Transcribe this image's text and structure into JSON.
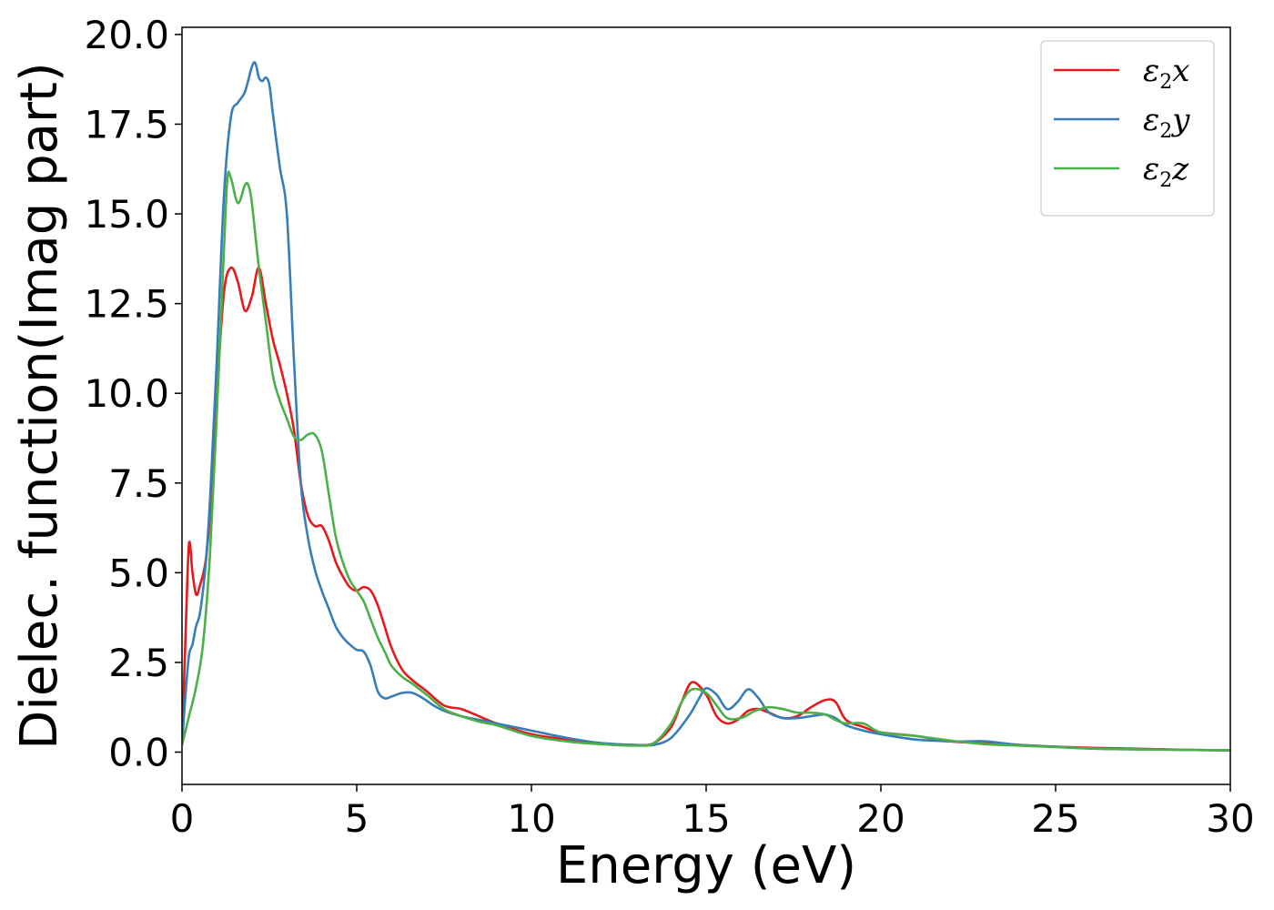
{
  "chart_data": {
    "type": "line",
    "xlabel": "Energy (eV)",
    "ylabel": "Dielec. function(Imag part)",
    "xlim": [
      0,
      30
    ],
    "ylim": [
      -0.9,
      20.2
    ],
    "xticks": [
      "0",
      "5",
      "10",
      "15",
      "20",
      "25",
      "30"
    ],
    "yticks": [
      "0.0",
      "2.5",
      "5.0",
      "7.5",
      "10.0",
      "12.5",
      "15.0",
      "17.5",
      "20.0"
    ],
    "legend_position": "top-right",
    "grid": false,
    "series": [
      {
        "name": "ε2x",
        "symbol": "ε",
        "sub": "2",
        "axis": "x",
        "color": "#e41a1c",
        "x": [
          0,
          0.1,
          0.2,
          0.3,
          0.4,
          0.5,
          0.7,
          0.9,
          1.0,
          1.2,
          1.4,
          1.6,
          1.8,
          2.0,
          2.2,
          2.4,
          2.6,
          2.8,
          3.0,
          3.2,
          3.4,
          3.6,
          3.8,
          4.0,
          4.2,
          4.4,
          4.6,
          4.8,
          5.0,
          5.2,
          5.4,
          5.6,
          5.8,
          6.0,
          6.3,
          6.6,
          7.0,
          7.5,
          8.0,
          8.5,
          9.0,
          10,
          11,
          12,
          13,
          13.5,
          14.0,
          14.3,
          14.6,
          15.0,
          15.3,
          15.6,
          15.9,
          16.2,
          16.5,
          16.8,
          17.2,
          17.6,
          18.0,
          18.4,
          18.7,
          19.0,
          19.5,
          20,
          21,
          22,
          23,
          24,
          25,
          26,
          27,
          28,
          29,
          30
        ],
        "values": [
          0.2,
          3.2,
          5.8,
          5.0,
          4.4,
          4.6,
          5.5,
          8.0,
          10.0,
          12.8,
          13.5,
          13.1,
          12.3,
          12.7,
          13.5,
          12.5,
          11.5,
          10.8,
          10.0,
          9.0,
          7.5,
          6.6,
          6.3,
          6.3,
          5.9,
          5.3,
          4.9,
          4.6,
          4.5,
          4.6,
          4.5,
          4.1,
          3.5,
          2.9,
          2.3,
          2.0,
          1.7,
          1.3,
          1.2,
          1.0,
          0.8,
          0.5,
          0.35,
          0.25,
          0.2,
          0.25,
          0.7,
          1.4,
          1.95,
          1.6,
          1.0,
          0.8,
          0.9,
          1.15,
          1.2,
          1.1,
          0.95,
          1.0,
          1.25,
          1.45,
          1.4,
          0.9,
          0.7,
          0.55,
          0.45,
          0.3,
          0.25,
          0.2,
          0.15,
          0.12,
          0.1,
          0.08,
          0.06,
          0.05
        ]
      },
      {
        "name": "ε2y",
        "symbol": "ε",
        "sub": "2",
        "axis": "y",
        "color": "#377eb8",
        "x": [
          0,
          0.1,
          0.2,
          0.3,
          0.4,
          0.5,
          0.6,
          0.7,
          0.8,
          0.9,
          1.0,
          1.2,
          1.4,
          1.6,
          1.8,
          2.0,
          2.1,
          2.2,
          2.3,
          2.4,
          2.5,
          2.6,
          2.8,
          3.0,
          3.2,
          3.4,
          3.6,
          3.8,
          4.0,
          4.2,
          4.4,
          4.6,
          4.8,
          5.0,
          5.2,
          5.4,
          5.6,
          5.8,
          6.0,
          6.3,
          6.6,
          6.9,
          7.2,
          7.5,
          8.0,
          8.5,
          9.0,
          10,
          11,
          12,
          13,
          13.5,
          14.0,
          14.5,
          14.8,
          15.0,
          15.3,
          15.6,
          15.9,
          16.2,
          16.5,
          16.8,
          17.2,
          17.6,
          18.0,
          18.4,
          18.7,
          19.0,
          19.5,
          20,
          21,
          22,
          22.5,
          23,
          24,
          25,
          26,
          27,
          28,
          29,
          30
        ],
        "values": [
          0.2,
          1.6,
          2.7,
          3.0,
          3.5,
          3.8,
          4.5,
          5.5,
          7.0,
          9.0,
          11.0,
          15.5,
          17.7,
          18.1,
          18.4,
          19.1,
          19.2,
          18.8,
          18.7,
          18.8,
          18.6,
          17.8,
          16.3,
          15.0,
          11.0,
          7.5,
          6.0,
          5.1,
          4.5,
          4.0,
          3.5,
          3.2,
          3.0,
          2.85,
          2.8,
          2.4,
          1.7,
          1.5,
          1.55,
          1.65,
          1.65,
          1.5,
          1.3,
          1.15,
          1.0,
          0.9,
          0.8,
          0.6,
          0.4,
          0.25,
          0.2,
          0.2,
          0.4,
          1.0,
          1.5,
          1.78,
          1.6,
          1.2,
          1.4,
          1.75,
          1.5,
          1.1,
          0.95,
          0.95,
          1.0,
          1.05,
          0.95,
          0.75,
          0.6,
          0.5,
          0.35,
          0.3,
          0.3,
          0.3,
          0.2,
          0.15,
          0.1,
          0.08,
          0.07,
          0.06,
          0.05
        ]
      },
      {
        "name": "ε2z",
        "symbol": "ε",
        "sub": "2",
        "axis": "z",
        "color": "#4daf4a",
        "x": [
          0,
          0.2,
          0.4,
          0.6,
          0.8,
          1.0,
          1.2,
          1.3,
          1.4,
          1.6,
          1.8,
          1.9,
          2.0,
          2.2,
          2.4,
          2.6,
          2.8,
          3.0,
          3.2,
          3.4,
          3.6,
          3.8,
          4.0,
          4.2,
          4.4,
          4.6,
          4.8,
          5.0,
          5.2,
          5.4,
          5.6,
          5.8,
          6.0,
          6.3,
          6.6,
          7.0,
          7.5,
          8.0,
          8.5,
          9.0,
          10,
          11,
          12,
          13,
          13.5,
          14.0,
          14.3,
          14.6,
          15.0,
          15.3,
          15.6,
          16.0,
          16.4,
          16.8,
          17.2,
          17.6,
          18.0,
          18.4,
          18.7,
          19.0,
          19.5,
          20,
          21,
          22,
          23,
          24,
          25,
          26,
          27,
          28,
          29,
          30
        ],
        "values": [
          0.2,
          1.0,
          1.8,
          3.0,
          5.5,
          9.5,
          14.0,
          16.0,
          16.0,
          15.3,
          15.8,
          15.8,
          15.3,
          13.5,
          12.0,
          10.5,
          9.8,
          9.3,
          8.8,
          8.7,
          8.85,
          8.85,
          8.4,
          7.2,
          6.0,
          5.3,
          4.8,
          4.5,
          4.2,
          3.7,
          3.2,
          2.8,
          2.4,
          2.1,
          1.9,
          1.6,
          1.2,
          1.0,
          0.85,
          0.75,
          0.45,
          0.3,
          0.22,
          0.18,
          0.25,
          0.8,
          1.4,
          1.75,
          1.65,
          1.3,
          0.95,
          0.95,
          1.15,
          1.25,
          1.2,
          1.1,
          1.1,
          1.05,
          0.9,
          0.8,
          0.8,
          0.55,
          0.45,
          0.32,
          0.22,
          0.18,
          0.14,
          0.1,
          0.08,
          0.07,
          0.06,
          0.05
        ]
      }
    ]
  }
}
